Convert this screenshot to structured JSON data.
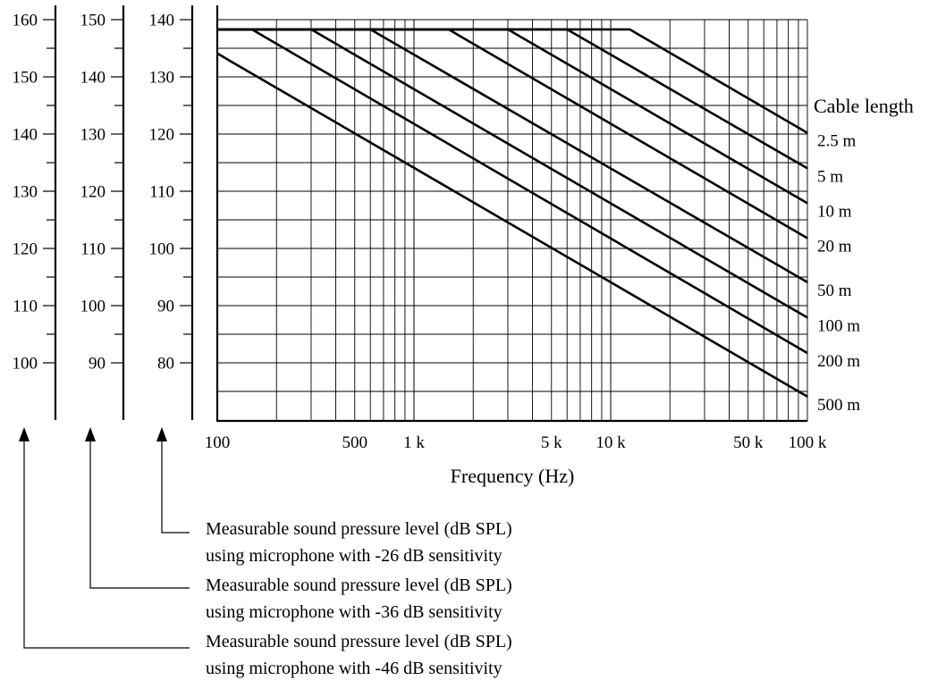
{
  "chart_data": {
    "type": "line",
    "xlabel": "Frequency (Hz)",
    "x_scale": "log",
    "xlim": [
      100,
      100000
    ],
    "x_tick_labels": [
      {
        "value": 100,
        "label": "100"
      },
      {
        "value": 500,
        "label": "500"
      },
      {
        "value": 1000,
        "label": "1 k"
      },
      {
        "value": 5000,
        "label": "5 k"
      },
      {
        "value": 10000,
        "label": "10 k"
      },
      {
        "value": 50000,
        "label": "50 k"
      },
      {
        "value": 100000,
        "label": "100 k"
      }
    ],
    "ylim": [
      74,
      140
    ],
    "grid": true,
    "y_axes": [
      {
        "offset": 20,
        "labels": [
          "160",
          "150",
          "140",
          "130",
          "120",
          "110",
          "100"
        ],
        "legend": [
          "Measurable sound pressure level (dB SPL)",
          "using microphone with -46 dB sensitivity"
        ]
      },
      {
        "offset": 10,
        "labels": [
          "150",
          "140",
          "130",
          "120",
          "110",
          "100",
          "90"
        ],
        "legend": [
          "Measurable sound pressure level (dB SPL)",
          "using microphone with -36 dB sensitivity"
        ]
      },
      {
        "offset": 0,
        "labels": [
          "140",
          "130",
          "120",
          "110",
          "100",
          "90",
          "80"
        ],
        "legend": [
          "Measurable sound pressure level (dB SPL)",
          "using microphone with -26 dB sensitivity"
        ]
      }
    ],
    "legend_title": "Cable length",
    "series": [
      {
        "name": "2.5 m",
        "points": [
          [
            100,
            138.3
          ],
          [
            12500,
            138.3
          ],
          [
            100000,
            120.2
          ]
        ]
      },
      {
        "name": "5 m",
        "points": [
          [
            100,
            138.3
          ],
          [
            6000,
            138.3
          ],
          [
            100000,
            114.0
          ]
        ]
      },
      {
        "name": "10 m",
        "points": [
          [
            100,
            138.3
          ],
          [
            3000,
            138.3
          ],
          [
            100000,
            107.9
          ]
        ]
      },
      {
        "name": "20 m",
        "points": [
          [
            100,
            138.3
          ],
          [
            1500,
            138.3
          ],
          [
            100000,
            101.8
          ]
        ]
      },
      {
        "name": "50 m",
        "points": [
          [
            100,
            138.3
          ],
          [
            600,
            138.3
          ],
          [
            100000,
            94.1
          ]
        ]
      },
      {
        "name": "100 m",
        "points": [
          [
            100,
            138.3
          ],
          [
            300,
            138.3
          ],
          [
            100000,
            87.9
          ]
        ]
      },
      {
        "name": "200 m",
        "points": [
          [
            100,
            138.3
          ],
          [
            150,
            138.3
          ],
          [
            100000,
            81.7
          ]
        ]
      },
      {
        "name": "500 m",
        "points": [
          [
            100,
            134.1
          ],
          [
            100000,
            74.1
          ]
        ]
      }
    ]
  }
}
